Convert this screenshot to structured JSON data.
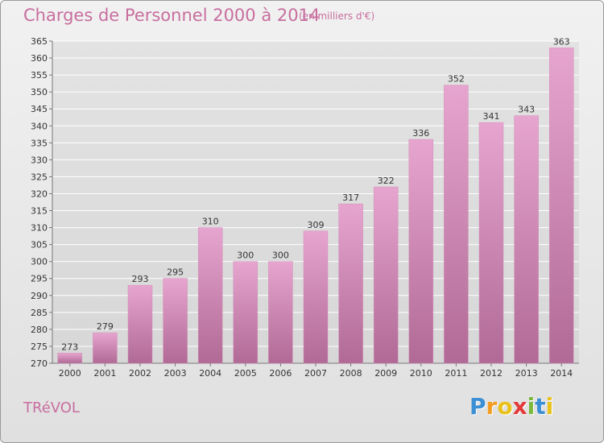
{
  "header": {
    "title": "Charges de Personnel 2000 à 2014",
    "subtitle": "(en milliers d'€)"
  },
  "footer": {
    "commune": "TRéVOL",
    "logo_letters": [
      "P",
      "r",
      "o",
      "x",
      "i",
      "t",
      "i"
    ],
    "logo_colors": [
      "#3b8fd4",
      "#f39c1f",
      "#e8c21a",
      "#e23a3a",
      "#7ab83a",
      "#3b8fd4",
      "#e8c21a"
    ]
  },
  "chart_data": {
    "type": "bar",
    "title": "Charges de Personnel 2000 à 2014",
    "xlabel": "",
    "ylabel": "",
    "categories": [
      "2000",
      "2001",
      "2002",
      "2003",
      "2004",
      "2005",
      "2006",
      "2007",
      "2008",
      "2009",
      "2010",
      "2011",
      "2012",
      "2013",
      "2014"
    ],
    "values": [
      273,
      279,
      293,
      295,
      310,
      300,
      300,
      309,
      317,
      322,
      336,
      352,
      341,
      343,
      363
    ],
    "ylim": [
      270,
      365
    ],
    "yticks": [
      270,
      275,
      280,
      285,
      290,
      295,
      300,
      305,
      310,
      315,
      320,
      325,
      330,
      335,
      340,
      345,
      350,
      355,
      360,
      365
    ],
    "grid": true,
    "bar_color_top": "#e6a5cf",
    "bar_color_bottom": "#b06a95"
  }
}
